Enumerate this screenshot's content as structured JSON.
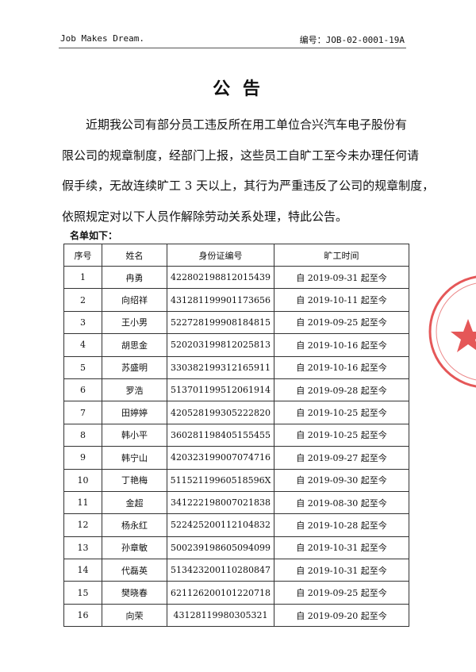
{
  "header": {
    "left": "Job Makes Dream.",
    "right": "编号：JOB-02-0001-19A"
  },
  "title": "公 告",
  "paragraph_lines": [
    "近期我公司有部分员工违反所在用工单位合兴汽车电子股份有",
    "限公司的规章制度，经部门上报，这些员工自旷工至今未办理任何请",
    "假手续，无故连续旷工 3 天以上，其行为严重违反了公司的规章制度，",
    "依照规定对以下人员作解除劳动关系处理，特此公告。"
  ],
  "list_caption": "名单如下：",
  "table": {
    "header": [
      "序号",
      "姓名",
      "身份证编号",
      "旷工时间"
    ],
    "rows": [
      [
        "1",
        "冉勇",
        "422802198812015439",
        "自 2019-09-31 起至今"
      ],
      [
        "2",
        "向绍祥",
        "431281199901173656",
        "自 2019-10-11 起至今"
      ],
      [
        "3",
        "王小男",
        "522728199908184815",
        "自 2019-09-25 起至今"
      ],
      [
        "4",
        "胡思金",
        "520203199812025813",
        "自 2019-10-16 起至今"
      ],
      [
        "5",
        "苏盛明",
        "330382199312165911",
        "自 2019-10-16 起至今"
      ],
      [
        "6",
        "罗浩",
        "513701199512061914",
        "自 2019-09-28 起至今"
      ],
      [
        "7",
        "田婷婷",
        "420528199305222820",
        "自 2019-10-25 起至今"
      ],
      [
        "8",
        "韩小平",
        "360281198405155455",
        "自 2019-10-25 起至今"
      ],
      [
        "9",
        "韩宁山",
        "420323199007074716",
        "自 2019-09-27 起至今"
      ],
      [
        "10",
        "丁艳梅",
        "51152119960518596X",
        "自 2019-09-30 起至今"
      ],
      [
        "11",
        "金超",
        "341222198007021838",
        "自 2019-08-30 起至今"
      ],
      [
        "12",
        "杨永红",
        "522425200112104832",
        "自 2019-10-28 起至今"
      ],
      [
        "13",
        "孙章敏",
        "500239198605094099",
        "自 2019-10-31 起至今"
      ],
      [
        "14",
        "代磊英",
        "513423200110280847",
        "自 2019-10-31 起至今"
      ],
      [
        "15",
        "樊晓春",
        "621126200101220718",
        "自 2019-09-25 起至今"
      ],
      [
        "16",
        "向荣",
        "43128119980305321",
        "自 2019-09-20 起至今"
      ]
    ]
  }
}
